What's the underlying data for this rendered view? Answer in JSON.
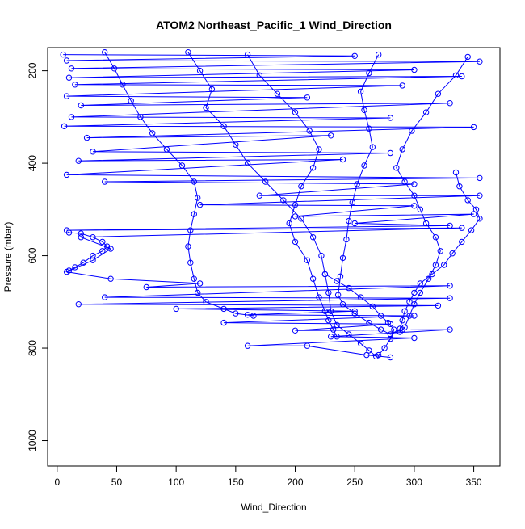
{
  "chart_data": {
    "type": "scatter",
    "title": "ATOM2 Northeast_Pacific_1 Wind_Direction",
    "xlabel": "Wind_Direction",
    "ylabel": "Pressure (mbar)",
    "xlim": [
      -8,
      372
    ],
    "ylim": [
      1055,
      150
    ],
    "y_inverted": true,
    "x_ticks": [
      0,
      50,
      100,
      150,
      200,
      250,
      300,
      350
    ],
    "y_ticks": [
      200,
      400,
      600,
      800,
      1000
    ],
    "grid": false,
    "legend": "none",
    "series": [
      {
        "color": "#0000ff",
        "marker": "open-circle",
        "connected": true,
        "points": [
          [
            5,
            165
          ],
          [
            250,
            168
          ],
          [
            8,
            178
          ],
          [
            355,
            180
          ],
          [
            12,
            195
          ],
          [
            300,
            198
          ],
          [
            10,
            215
          ],
          [
            340,
            212
          ],
          [
            15,
            230
          ],
          [
            290,
            232
          ],
          [
            8,
            255
          ],
          [
            210,
            258
          ],
          [
            20,
            275
          ],
          [
            330,
            270
          ],
          [
            12,
            300
          ],
          [
            280,
            302
          ],
          [
            6,
            320
          ],
          [
            350,
            322
          ],
          [
            25,
            345
          ],
          [
            230,
            340
          ],
          [
            30,
            375
          ],
          [
            280,
            378
          ],
          [
            18,
            395
          ],
          [
            240,
            392
          ],
          [
            8,
            425
          ],
          [
            355,
            432
          ],
          [
            40,
            440
          ],
          [
            300,
            445
          ],
          [
            170,
            470
          ],
          [
            355,
            470
          ],
          [
            120,
            490
          ],
          [
            300,
            492
          ],
          [
            200,
            515
          ],
          [
            350,
            510
          ],
          [
            250,
            530
          ],
          [
            330,
            535
          ],
          [
            8,
            545
          ],
          [
            340,
            540
          ],
          [
            20,
            560
          ],
          [
            45,
            585
          ],
          [
            30,
            610
          ],
          [
            8,
            635
          ],
          [
            45,
            650
          ],
          [
            120,
            660
          ],
          [
            75,
            668
          ],
          [
            330,
            665
          ],
          [
            40,
            690
          ],
          [
            330,
            692
          ],
          [
            18,
            705
          ],
          [
            320,
            708
          ],
          [
            100,
            715
          ],
          [
            250,
            720
          ],
          [
            160,
            728
          ],
          [
            300,
            730
          ],
          [
            140,
            745
          ],
          [
            280,
            748
          ],
          [
            200,
            762
          ],
          [
            330,
            760
          ],
          [
            230,
            775
          ],
          [
            300,
            778
          ],
          [
            160,
            795
          ],
          [
            210,
            795
          ],
          [
            260,
            815
          ],
          [
            280,
            820
          ]
        ]
      },
      {
        "color": "#0000ff",
        "marker": "open-circle",
        "connected": true,
        "points": [
          [
            110,
            160
          ],
          [
            120,
            200
          ],
          [
            130,
            240
          ],
          [
            125,
            280
          ],
          [
            140,
            320
          ],
          [
            150,
            360
          ],
          [
            160,
            400
          ],
          [
            175,
            440
          ],
          [
            190,
            480
          ],
          [
            205,
            520
          ],
          [
            215,
            560
          ],
          [
            222,
            600
          ],
          [
            225,
            640
          ],
          [
            228,
            680
          ],
          [
            230,
            720
          ],
          [
            235,
            750
          ],
          [
            245,
            770
          ],
          [
            255,
            790
          ],
          [
            262,
            805
          ],
          [
            268,
            818
          ]
        ]
      },
      {
        "color": "#0000ff",
        "marker": "open-circle",
        "connected": true,
        "points": [
          [
            270,
            165
          ],
          [
            262,
            205
          ],
          [
            255,
            245
          ],
          [
            258,
            285
          ],
          [
            262,
            325
          ],
          [
            265,
            365
          ],
          [
            258,
            405
          ],
          [
            252,
            445
          ],
          [
            248,
            485
          ],
          [
            245,
            525
          ],
          [
            243,
            565
          ],
          [
            240,
            605
          ],
          [
            238,
            645
          ],
          [
            236,
            685
          ],
          [
            240,
            705
          ],
          [
            250,
            725
          ],
          [
            262,
            745
          ],
          [
            272,
            760
          ],
          [
            280,
            770
          ],
          [
            290,
            760
          ]
        ]
      },
      {
        "color": "#0000ff",
        "marker": "open-circle",
        "connected": true,
        "points": [
          [
            345,
            170
          ],
          [
            335,
            210
          ],
          [
            320,
            250
          ],
          [
            310,
            290
          ],
          [
            298,
            330
          ],
          [
            290,
            370
          ],
          [
            285,
            410
          ],
          [
            292,
            440
          ],
          [
            300,
            470
          ],
          [
            305,
            500
          ],
          [
            310,
            530
          ],
          [
            318,
            560
          ],
          [
            322,
            590
          ],
          [
            318,
            620
          ],
          [
            312,
            650
          ],
          [
            305,
            680
          ],
          [
            300,
            705
          ],
          [
            296,
            730
          ],
          [
            292,
            755
          ],
          [
            288,
            765
          ]
        ]
      },
      {
        "color": "#0000ff",
        "marker": "open-circle",
        "connected": true,
        "points": [
          [
            160,
            165
          ],
          [
            170,
            210
          ],
          [
            185,
            250
          ],
          [
            200,
            290
          ],
          [
            212,
            330
          ],
          [
            220,
            370
          ],
          [
            215,
            410
          ],
          [
            205,
            450
          ],
          [
            200,
            490
          ],
          [
            195,
            530
          ],
          [
            200,
            570
          ],
          [
            210,
            610
          ],
          [
            215,
            650
          ],
          [
            220,
            690
          ],
          [
            225,
            720
          ],
          [
            228,
            740
          ],
          [
            232,
            760
          ],
          [
            235,
            775
          ]
        ]
      },
      {
        "color": "#0000ff",
        "marker": "open-circle",
        "connected": true,
        "points": [
          [
            40,
            160
          ],
          [
            48,
            195
          ],
          [
            55,
            230
          ],
          [
            62,
            265
          ],
          [
            70,
            300
          ],
          [
            80,
            335
          ],
          [
            92,
            370
          ],
          [
            105,
            405
          ],
          [
            115,
            440
          ],
          [
            118,
            475
          ],
          [
            115,
            510
          ],
          [
            112,
            545
          ],
          [
            110,
            580
          ],
          [
            112,
            615
          ],
          [
            115,
            650
          ],
          [
            118,
            680
          ],
          [
            125,
            700
          ],
          [
            140,
            715
          ],
          [
            150,
            725
          ],
          [
            165,
            730
          ]
        ]
      },
      {
        "color": "#0000ff",
        "marker": "open-circle",
        "connected": true,
        "points": [
          [
            335,
            420
          ],
          [
            338,
            450
          ],
          [
            345,
            480
          ],
          [
            352,
            500
          ],
          [
            355,
            520
          ],
          [
            348,
            545
          ],
          [
            340,
            570
          ],
          [
            332,
            595
          ],
          [
            325,
            620
          ],
          [
            315,
            640
          ],
          [
            305,
            660
          ],
          [
            300,
            680
          ],
          [
            296,
            700
          ],
          [
            292,
            720
          ],
          [
            290,
            740
          ],
          [
            288,
            758
          ]
        ]
      },
      {
        "color": "#0000ff",
        "marker": "open-circle",
        "connected": true,
        "points": [
          [
            10,
            550
          ],
          [
            20,
            552
          ],
          [
            30,
            560
          ],
          [
            38,
            570
          ],
          [
            42,
            580
          ],
          [
            38,
            590
          ],
          [
            30,
            600
          ],
          [
            22,
            615
          ],
          [
            15,
            625
          ],
          [
            10,
            632
          ]
        ]
      },
      {
        "color": "#0000ff",
        "marker": "open-circle",
        "connected": true,
        "points": [
          [
            225,
            640
          ],
          [
            235,
            655
          ],
          [
            245,
            670
          ],
          [
            255,
            690
          ],
          [
            265,
            710
          ],
          [
            272,
            730
          ],
          [
            278,
            745
          ],
          [
            283,
            760
          ],
          [
            280,
            780
          ],
          [
            275,
            800
          ],
          [
            270,
            815
          ]
        ]
      }
    ]
  }
}
